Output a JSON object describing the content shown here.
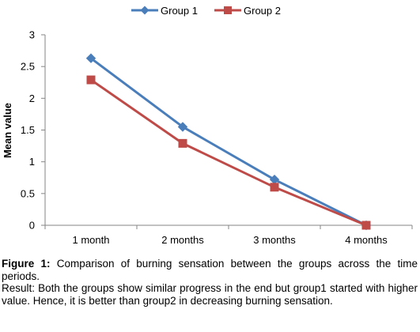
{
  "chart_data": {
    "type": "line",
    "categories": [
      "1 month",
      "2 months",
      "3 months",
      "4 months"
    ],
    "series": [
      {
        "name": "Group 1",
        "values": [
          2.63,
          1.55,
          0.72,
          0.0
        ],
        "color": "#4a7ebb",
        "marker": "diamond"
      },
      {
        "name": "Group 2",
        "values": [
          2.29,
          1.29,
          0.6,
          0.0
        ],
        "color": "#be4b48",
        "marker": "square"
      }
    ],
    "ylabel": "Mean value",
    "ylim": [
      0,
      3
    ],
    "yticks": [
      "0",
      "0.5",
      "1",
      "1.5",
      "2",
      "2.5",
      "3"
    ],
    "grid": false,
    "legend_position": "top"
  },
  "caption": {
    "figure_label": "Figure 1:",
    "figure_text": " Comparison of burning sensation between the groups across the time periods.",
    "result_text": "Result: Both the groups show similar progress in the end but group1 started with higher value. Hence, it is better than group2 in decreasing burning sensation."
  }
}
